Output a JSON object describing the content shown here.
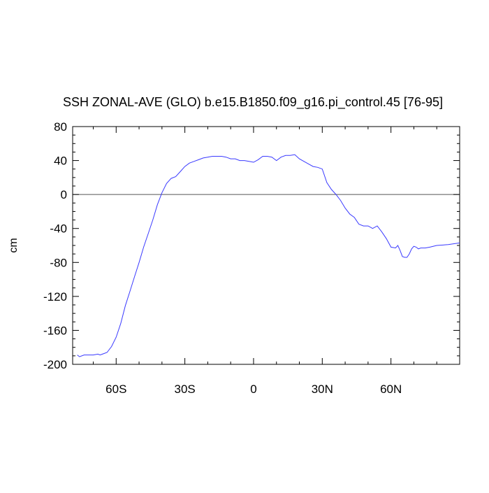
{
  "chart_data": {
    "type": "line",
    "title": "SSH ZONAL-AVE (GLO) b.e15.B1850.f09_g16.pi_control.45 [76-95]",
    "xlabel": "",
    "ylabel": "cm",
    "xlim": [
      -79,
      90
    ],
    "ylim": [
      -200,
      80
    ],
    "x_ticks": [
      {
        "value": -60,
        "label": "60S"
      },
      {
        "value": -30,
        "label": "30S"
      },
      {
        "value": 0,
        "label": "0"
      },
      {
        "value": 30,
        "label": "30N"
      },
      {
        "value": 60,
        "label": "60N"
      }
    ],
    "y_ticks": [
      80,
      40,
      0,
      -40,
      -80,
      -120,
      -160,
      -200
    ],
    "grid": false,
    "reference_line": 0,
    "line_color": "#3a3aff",
    "series": [
      {
        "name": "",
        "x": [
          -77,
          -76,
          -74,
          -72,
          -70,
          -68,
          -67,
          -66,
          -64,
          -62,
          -60,
          -58,
          -56,
          -54,
          -52,
          -50,
          -48,
          -46,
          -44,
          -42,
          -40,
          -38,
          -36,
          -34,
          -32,
          -30,
          -28,
          -26,
          -24,
          -22,
          -20,
          -18,
          -16,
          -14,
          -12,
          -10,
          -8,
          -6,
          -4,
          -2,
          0,
          2,
          4,
          6,
          8,
          10,
          12,
          14,
          16,
          18,
          20,
          22,
          24,
          26,
          28,
          30,
          32,
          34,
          36,
          38,
          40,
          42,
          44,
          46,
          48,
          50,
          52,
          54,
          56,
          58,
          60,
          62,
          63,
          64,
          65,
          66,
          67,
          68,
          69,
          70,
          71,
          72,
          73,
          75,
          77,
          80,
          85,
          90
        ],
        "y": [
          -189,
          -191,
          -189,
          -189,
          -189,
          -188,
          -189,
          -188,
          -186,
          -179,
          -168,
          -152,
          -131,
          -114,
          -97,
          -80,
          -62,
          -46,
          -30,
          -12,
          2,
          13,
          19,
          21,
          27,
          33,
          37,
          39,
          41,
          43,
          44,
          45,
          45,
          45,
          44,
          42,
          42,
          40,
          40,
          39,
          38,
          41,
          45,
          45,
          44,
          40,
          44,
          46,
          46,
          47,
          42,
          39,
          36,
          33,
          32,
          30,
          14,
          6,
          0,
          -7,
          -16,
          -23,
          -27,
          -35,
          -37,
          -37,
          -40,
          -37,
          -44,
          -52,
          -62,
          -63,
          -60,
          -66,
          -73,
          -74,
          -74,
          -70,
          -64,
          -61,
          -62,
          -64,
          -63,
          -63,
          -62,
          -60,
          -59,
          -57
        ]
      }
    ]
  }
}
